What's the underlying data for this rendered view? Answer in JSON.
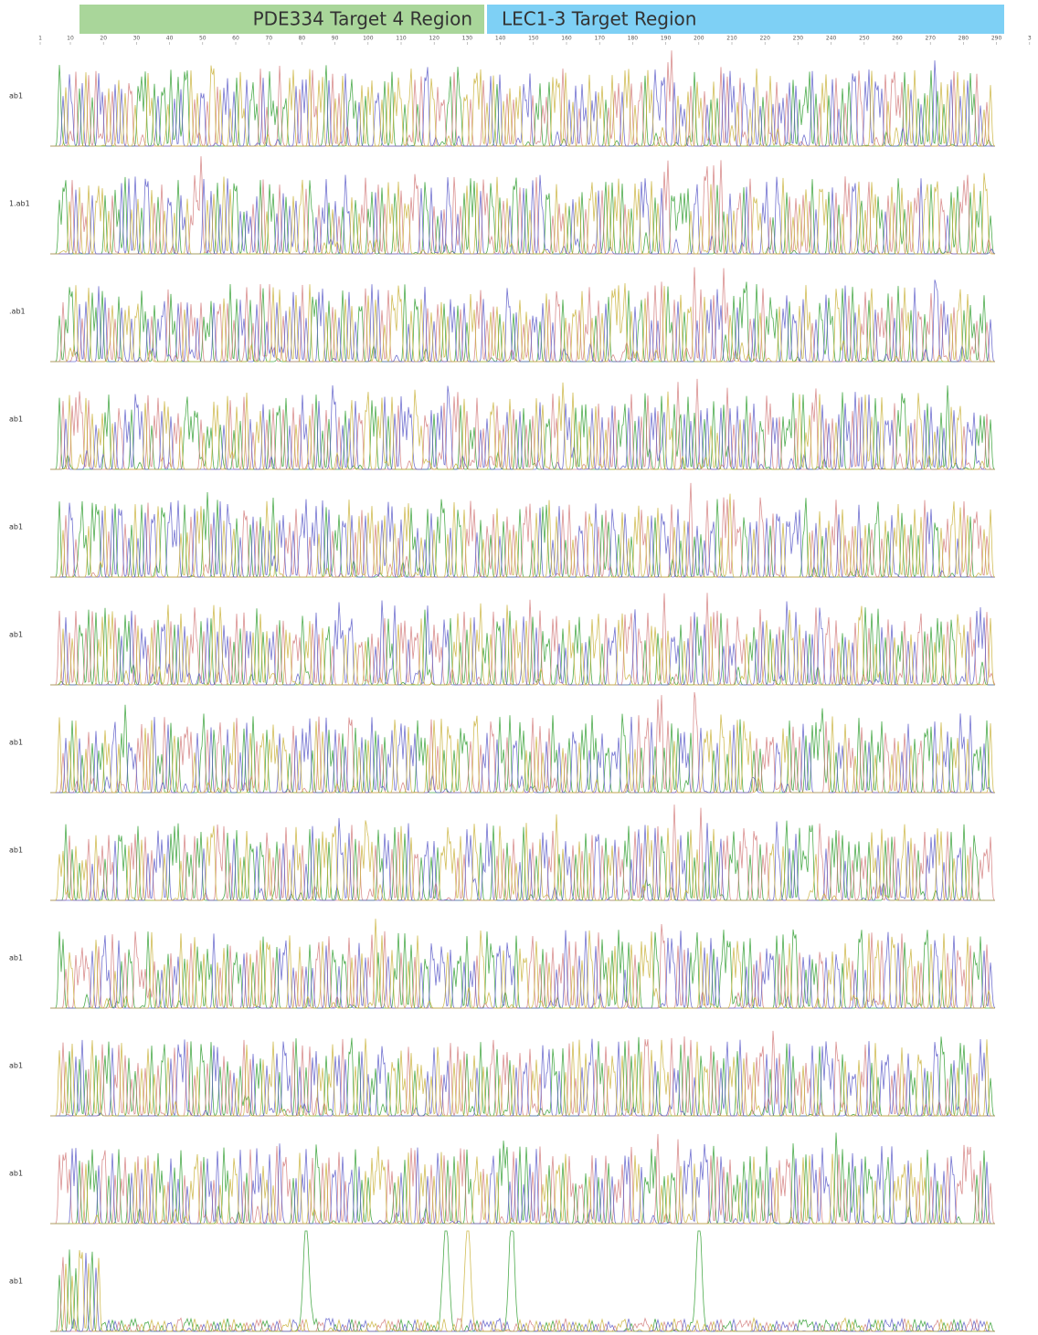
{
  "header": {
    "left_region": "PDE334 Target 4 Region",
    "right_region": "LEC1-3 Target Region"
  },
  "ruler": {
    "labels": [
      "1",
      "10",
      "20",
      "30",
      "40",
      "50",
      "60",
      "70",
      "80",
      "90",
      "100",
      "110",
      "120",
      "130",
      "140",
      "150",
      "160",
      "170",
      "180",
      "190",
      "200",
      "210",
      "220",
      "230",
      "240",
      "250",
      "260",
      "270",
      "280",
      "290",
      "3"
    ]
  },
  "tracks": [
    {
      "label": "ab1"
    },
    {
      "label": "1.ab1"
    },
    {
      "label": ".ab1"
    },
    {
      "label": "ab1"
    },
    {
      "label": "ab1"
    },
    {
      "label": "ab1"
    },
    {
      "label": "ab1"
    },
    {
      "label": "ab1"
    },
    {
      "label": "ab1"
    },
    {
      "label": "ab1"
    },
    {
      "label": "ab1"
    },
    {
      "label": "ab1"
    }
  ]
}
